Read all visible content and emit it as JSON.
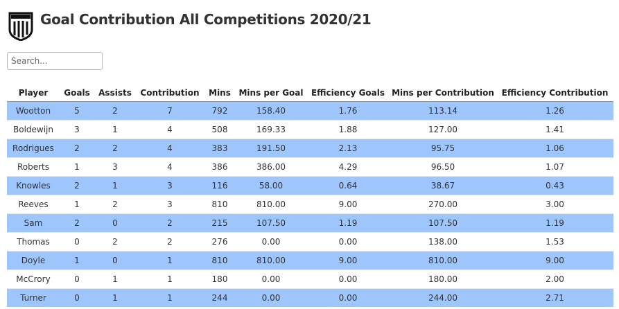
{
  "header": {
    "title": "Goal Contribution All Competitions 2020/21"
  },
  "search": {
    "placeholder": "Search..."
  },
  "table": {
    "columns": [
      "Player",
      "Goals",
      "Assists",
      "Contribution",
      "Mins",
      "Mins per Goal",
      "Efficiency Goals",
      "Mins per Contribution",
      "Efficiency Contribution"
    ],
    "rows": [
      [
        "Wootton",
        "5",
        "2",
        "7",
        "792",
        "158.40",
        "1.76",
        "113.14",
        "1.26"
      ],
      [
        "Boldewijn",
        "3",
        "1",
        "4",
        "508",
        "169.33",
        "1.88",
        "127.00",
        "1.41"
      ],
      [
        "Rodrigues",
        "2",
        "2",
        "4",
        "383",
        "191.50",
        "2.13",
        "95.75",
        "1.06"
      ],
      [
        "Roberts",
        "1",
        "3",
        "4",
        "386",
        "386.00",
        "4.29",
        "96.50",
        "1.07"
      ],
      [
        "Knowles",
        "2",
        "1",
        "3",
        "116",
        "58.00",
        "0.64",
        "38.67",
        "0.43"
      ],
      [
        "Reeves",
        "1",
        "2",
        "3",
        "810",
        "810.00",
        "9.00",
        "270.00",
        "3.00"
      ],
      [
        "Sam",
        "2",
        "0",
        "2",
        "215",
        "107.50",
        "1.19",
        "107.50",
        "1.19"
      ],
      [
        "Thomas",
        "0",
        "2",
        "2",
        "276",
        "0.00",
        "0.00",
        "138.00",
        "1.53"
      ],
      [
        "Doyle",
        "1",
        "0",
        "1",
        "810",
        "810.00",
        "9.00",
        "810.00",
        "9.00"
      ],
      [
        "McCrory",
        "0",
        "1",
        "1",
        "180",
        "0.00",
        "0.00",
        "180.00",
        "2.00"
      ],
      [
        "Turner",
        "0",
        "1",
        "1",
        "244",
        "0.00",
        "0.00",
        "244.00",
        "2.71"
      ]
    ]
  }
}
